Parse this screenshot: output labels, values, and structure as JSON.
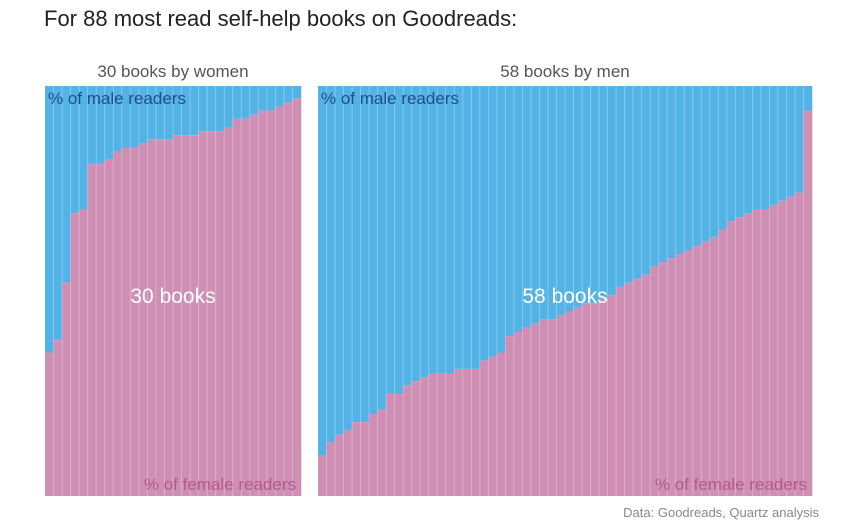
{
  "title": "For 88 most read self-help books on Goodreads:",
  "source": "Data: Goodreads, Quartz analysis",
  "colors": {
    "male": "#54b3e6",
    "female": "#cf8fb4"
  },
  "chart_data": [
    {
      "type": "bar",
      "stacked": true,
      "title": "30 books by women",
      "center_label": "30 books",
      "male_label": "% of male readers",
      "female_label": "% of female readers",
      "ylim": [
        0,
        100
      ],
      "series": [
        {
          "name": "% of female readers",
          "values": [
            35,
            38,
            52,
            69,
            70,
            81,
            81,
            82,
            84,
            85,
            85,
            86,
            87,
            87,
            87,
            88,
            88,
            88,
            89,
            89,
            89,
            90,
            92,
            92,
            93,
            94,
            94,
            95,
            96,
            97
          ]
        },
        {
          "name": "% of male readers",
          "values": [
            65,
            62,
            48,
            31,
            30,
            19,
            19,
            18,
            16,
            15,
            15,
            14,
            13,
            13,
            13,
            12,
            12,
            12,
            11,
            11,
            11,
            10,
            8,
            8,
            7,
            6,
            6,
            5,
            4,
            3
          ]
        }
      ]
    },
    {
      "type": "bar",
      "stacked": true,
      "title": "58 books by men",
      "center_label": "58 books",
      "male_label": "% of male readers",
      "female_label": "% of female readers",
      "ylim": [
        0,
        100
      ],
      "series": [
        {
          "name": "% of female readers",
          "values": [
            10,
            13,
            15,
            16,
            18,
            18,
            20,
            21,
            25,
            25,
            27,
            28,
            29,
            30,
            30,
            30,
            31,
            31,
            31,
            33,
            34,
            35,
            39,
            40,
            41,
            42,
            43,
            43,
            44,
            45,
            46,
            47,
            47,
            48,
            49,
            51,
            52,
            53,
            54,
            56,
            57,
            58,
            59,
            60,
            61,
            62,
            63,
            65,
            67,
            68,
            69,
            70,
            70,
            71,
            72,
            73,
            74,
            94
          ]
        },
        {
          "name": "% of male readers",
          "values": [
            90,
            87,
            85,
            84,
            82,
            82,
            80,
            79,
            75,
            75,
            73,
            72,
            71,
            70,
            70,
            70,
            69,
            69,
            69,
            67,
            66,
            65,
            61,
            60,
            59,
            58,
            57,
            57,
            56,
            55,
            54,
            53,
            53,
            52,
            51,
            49,
            48,
            47,
            46,
            44,
            43,
            42,
            41,
            40,
            39,
            38,
            37,
            35,
            33,
            32,
            31,
            30,
            30,
            29,
            28,
            27,
            26,
            6
          ]
        }
      ]
    }
  ]
}
